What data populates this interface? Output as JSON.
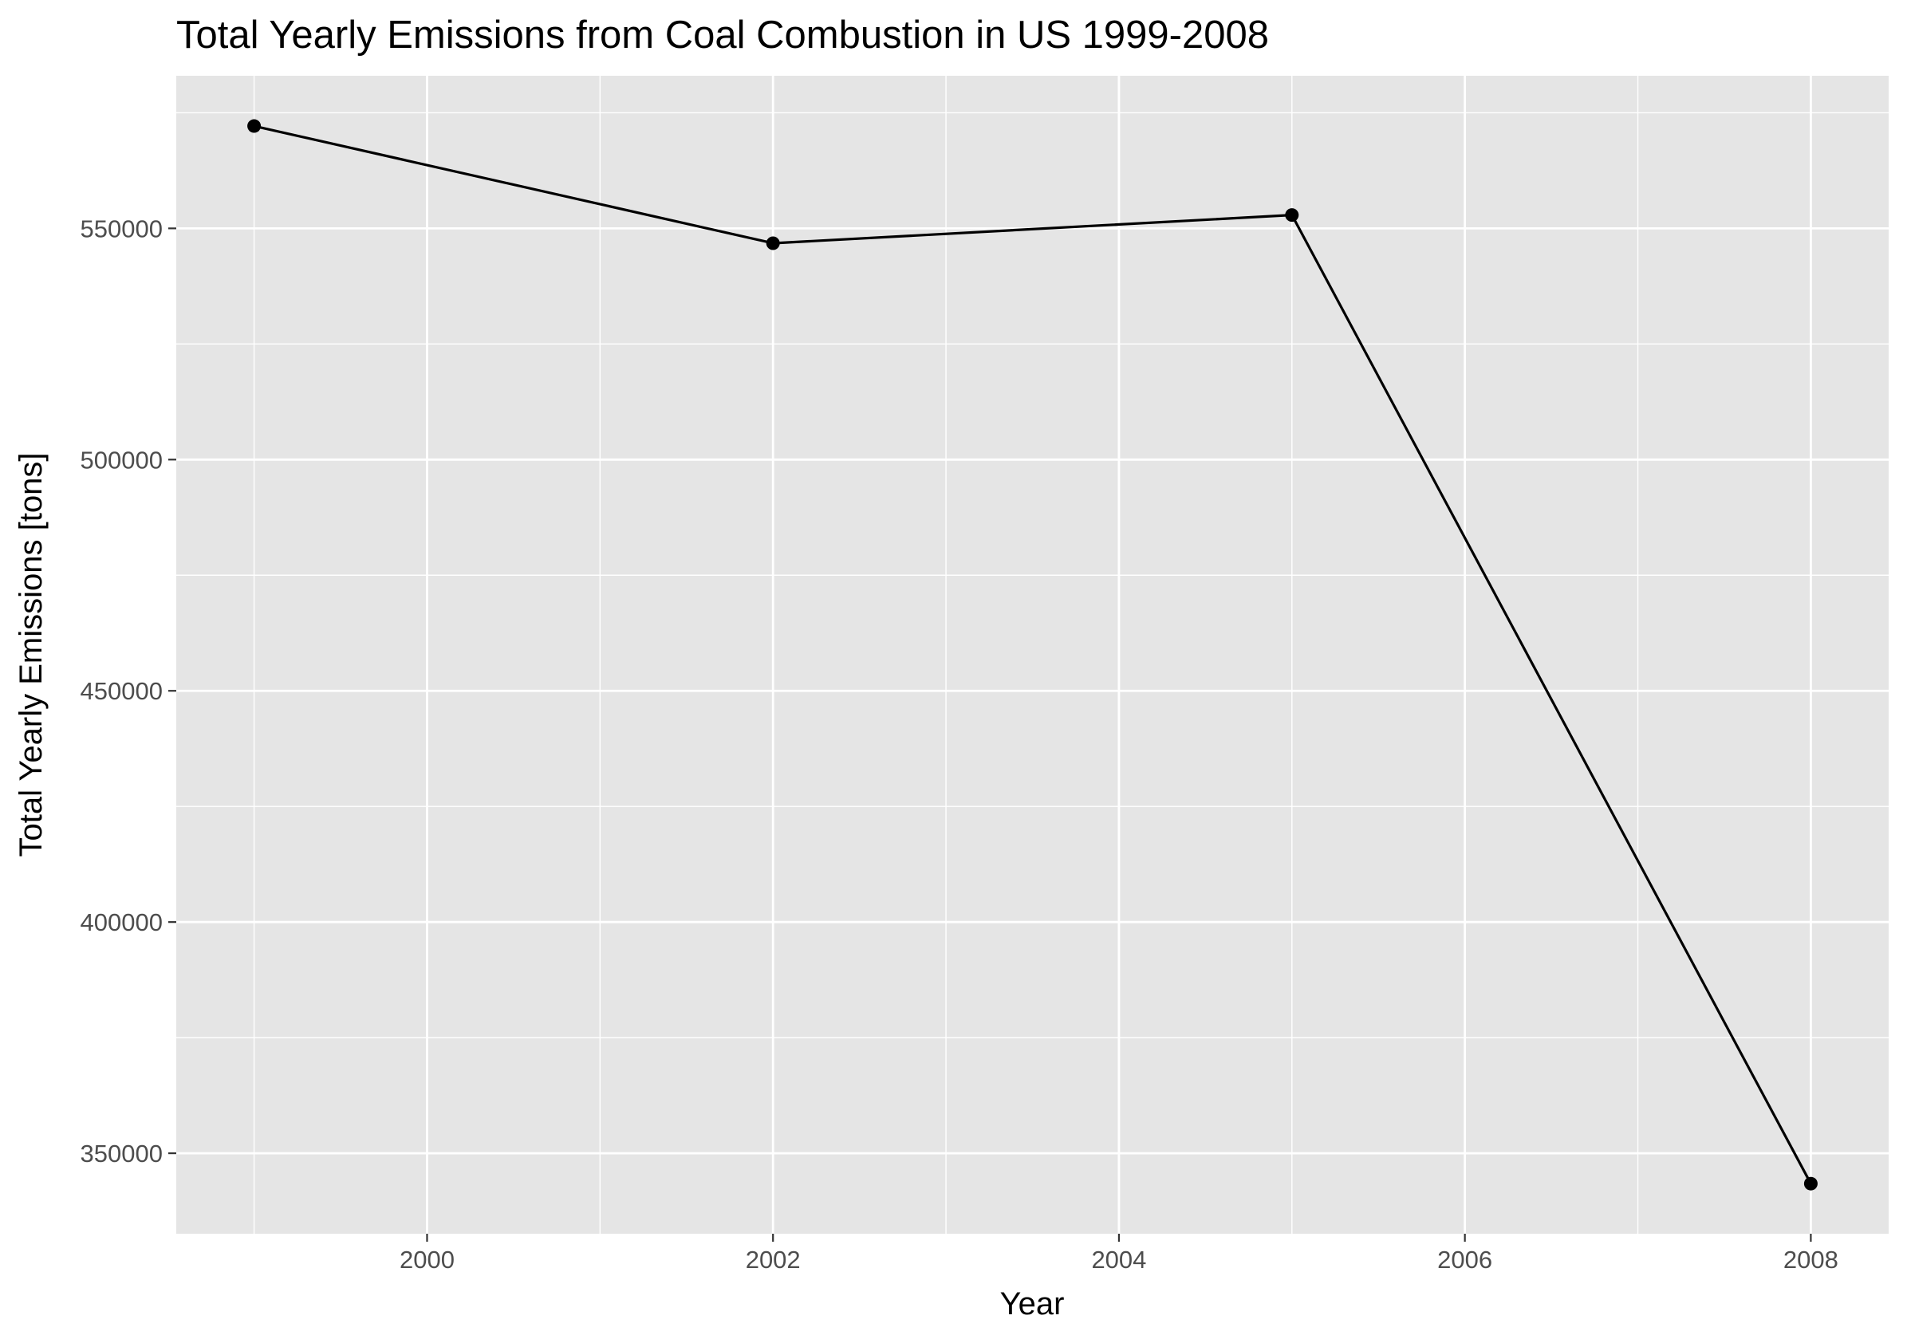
{
  "chart_data": {
    "type": "line",
    "title": "Total Yearly Emissions from Coal Combustion in US 1999-2008",
    "xlabel": "Year",
    "ylabel": "Total Yearly Emissions [tons]",
    "x": [
      1999,
      2002,
      2005,
      2008
    ],
    "series": [
      {
        "values": [
          572126,
          546789,
          552881,
          343432
        ]
      }
    ],
    "xlim": [
      1998.55,
      2008.45
    ],
    "ylim": [
      332600,
      583000
    ],
    "xticks": [
      2000,
      2002,
      2004,
      2006,
      2008
    ],
    "xtick_labels": [
      "2000",
      "2002",
      "2004",
      "2006",
      "2008"
    ],
    "yticks": [
      350000,
      400000,
      450000,
      500000,
      550000
    ],
    "ytick_labels": [
      "350000",
      "400000",
      "450000",
      "500000",
      "550000"
    ],
    "grid": true,
    "legend": "none",
    "colors": {
      "panel": "#e5e5e5",
      "grid": "#ffffff",
      "line": "#000000",
      "tick_text": "#4d4d4d"
    }
  }
}
